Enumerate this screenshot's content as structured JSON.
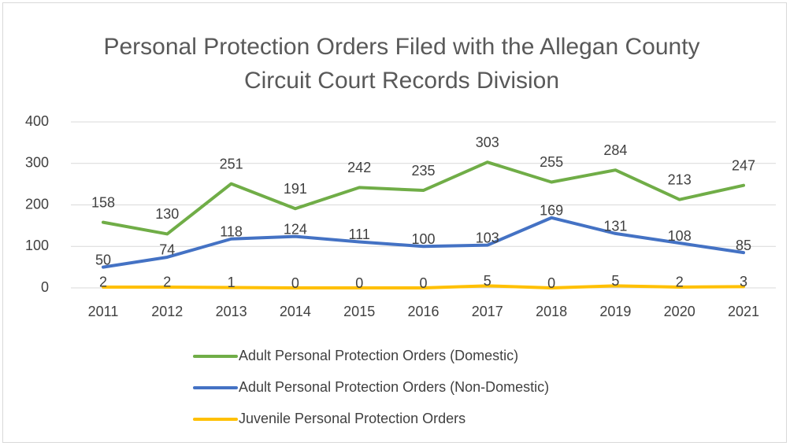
{
  "chart_data": {
    "type": "line",
    "title": "Personal Protection Orders Filed with the Allegan County Circuit Court Records Division",
    "categories": [
      "2011",
      "2012",
      "2013",
      "2014",
      "2015",
      "2016",
      "2017",
      "2018",
      "2019",
      "2020",
      "2021"
    ],
    "series": [
      {
        "name": "Adult Personal Protection Orders (Domestic)",
        "color": "#70ad47",
        "values": [
          158,
          130,
          251,
          191,
          242,
          235,
          303,
          255,
          284,
          213,
          247
        ]
      },
      {
        "name": "Adult Personal Protection Orders (Non-Domestic)",
        "color": "#4472c4",
        "values": [
          50,
          74,
          118,
          124,
          111,
          100,
          103,
          169,
          131,
          108,
          85
        ]
      },
      {
        "name": "Juvenile Personal Protection Orders",
        "color": "#ffc000",
        "values": [
          2,
          2,
          1,
          0,
          0,
          0,
          5,
          0,
          5,
          2,
          3
        ]
      }
    ],
    "ylim": [
      0,
      400
    ],
    "yticks": [
      0,
      100,
      200,
      300,
      400
    ],
    "grid": true,
    "legend": "bottom"
  }
}
